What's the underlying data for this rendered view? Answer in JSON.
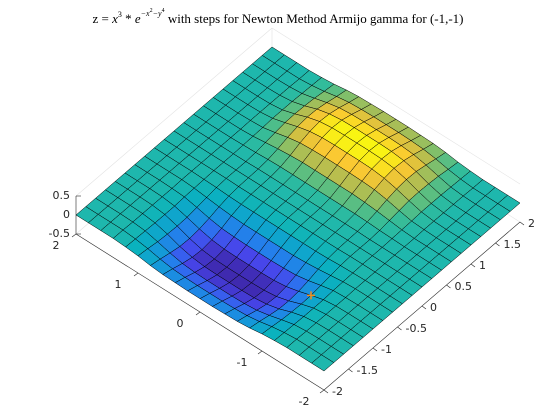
{
  "chart_data": {
    "type": "surface",
    "title": [
      "z = ",
      "x",
      "3",
      " * ",
      "e",
      "−x",
      "2",
      "−y",
      "4",
      " with steps for Newton Method Armijo gamma for (-1,-1)"
    ],
    "x": [
      -2,
      -1.8,
      -1.6,
      -1.4,
      -1.2,
      -1,
      -0.8,
      -0.6,
      -0.4,
      -0.2,
      0,
      0.2,
      0.4,
      0.6,
      0.8,
      1,
      1.2,
      1.4,
      1.6,
      1.8,
      2
    ],
    "y": [
      -2,
      -1.8,
      -1.6,
      -1.4,
      -1.2,
      -1,
      -0.8,
      -0.6,
      -0.4,
      -0.2,
      0,
      0.2,
      0.4,
      0.6,
      0.8,
      1,
      1.2,
      1.4,
      1.6,
      1.8,
      2
    ],
    "z": [
      [
        0,
        0,
        0,
        0,
        0,
        0,
        0,
        0,
        0,
        0,
        0,
        0,
        0,
        0,
        0,
        0,
        0,
        0,
        0,
        0,
        0
      ],
      [
        0,
        0,
        0,
        0,
        0,
        0,
        0,
        0,
        0,
        0,
        0,
        0,
        0,
        0,
        0,
        0,
        0,
        0,
        0,
        0,
        0
      ],
      [
        0,
        0,
        0,
        0,
        0,
        0,
        0,
        0,
        0,
        0,
        0,
        0,
        0,
        0,
        0,
        0,
        0,
        0,
        0,
        0,
        0
      ],
      [
        0,
        0,
        -0.01,
        -0.01,
        -0.01,
        -0.01,
        -0.01,
        0,
        0,
        0,
        0,
        0,
        0,
        0,
        0.01,
        0.01,
        0.01,
        0.01,
        0.01,
        0,
        0
      ],
      [
        -0.02,
        -0.03,
        -0.04,
        -0.05,
        -0.05,
        -0.05,
        -0.03,
        -0.02,
        -0.01,
        0,
        0,
        0,
        0.01,
        0.02,
        0.03,
        0.05,
        0.05,
        0.05,
        0.04,
        0.03,
        0.02
      ],
      [
        -0.05,
        -0.08,
        -0.12,
        -0.14,
        -0.15,
        -0.14,
        -0.1,
        -0.06,
        -0.02,
        0,
        0,
        0,
        0.02,
        0.06,
        0.1,
        0.14,
        0.15,
        0.14,
        0.12,
        0.08,
        0.05
      ],
      [
        -0.1,
        -0.15,
        -0.21,
        -0.26,
        -0.27,
        -0.24,
        -0.18,
        -0.1,
        -0.04,
        -0.01,
        0,
        0.01,
        0.04,
        0.1,
        0.18,
        0.24,
        0.27,
        0.26,
        0.21,
        0.15,
        0.1
      ],
      [
        -0.13,
        -0.2,
        -0.28,
        -0.34,
        -0.36,
        -0.32,
        -0.24,
        -0.13,
        -0.05,
        -0.01,
        0,
        0.01,
        0.05,
        0.13,
        0.24,
        0.32,
        0.36,
        0.34,
        0.28,
        0.2,
        0.13
      ],
      [
        -0.14,
        -0.22,
        -0.31,
        -0.38,
        -0.4,
        -0.36,
        -0.26,
        -0.15,
        -0.05,
        -0.01,
        0,
        0.01,
        0.05,
        0.15,
        0.26,
        0.36,
        0.4,
        0.38,
        0.31,
        0.22,
        0.14
      ],
      [
        -0.15,
        -0.23,
        -0.32,
        -0.39,
        -0.41,
        -0.37,
        -0.27,
        -0.15,
        -0.05,
        -0.01,
        0,
        0.01,
        0.05,
        0.15,
        0.27,
        0.37,
        0.41,
        0.39,
        0.32,
        0.23,
        0.15
      ],
      [
        -0.15,
        -0.23,
        -0.32,
        -0.39,
        -0.41,
        -0.37,
        -0.27,
        -0.15,
        -0.05,
        -0.01,
        0,
        0.01,
        0.05,
        0.15,
        0.27,
        0.37,
        0.41,
        0.39,
        0.32,
        0.23,
        0.15
      ],
      [
        -0.15,
        -0.23,
        -0.32,
        -0.39,
        -0.41,
        -0.37,
        -0.27,
        -0.15,
        -0.05,
        -0.01,
        0,
        0.01,
        0.05,
        0.15,
        0.27,
        0.37,
        0.41,
        0.39,
        0.32,
        0.23,
        0.15
      ],
      [
        -0.14,
        -0.22,
        -0.31,
        -0.38,
        -0.4,
        -0.36,
        -0.26,
        -0.15,
        -0.05,
        -0.01,
        0,
        0.01,
        0.05,
        0.15,
        0.26,
        0.36,
        0.4,
        0.38,
        0.31,
        0.22,
        0.14
      ],
      [
        -0.13,
        -0.2,
        -0.28,
        -0.34,
        -0.36,
        -0.32,
        -0.24,
        -0.13,
        -0.05,
        -0.01,
        0,
        0.01,
        0.05,
        0.13,
        0.24,
        0.32,
        0.36,
        0.34,
        0.28,
        0.2,
        0.13
      ],
      [
        -0.1,
        -0.15,
        -0.21,
        -0.26,
        -0.27,
        -0.24,
        -0.18,
        -0.1,
        -0.04,
        -0.01,
        0,
        0.01,
        0.04,
        0.1,
        0.18,
        0.24,
        0.27,
        0.26,
        0.21,
        0.15,
        0.1
      ],
      [
        -0.05,
        -0.08,
        -0.12,
        -0.14,
        -0.15,
        -0.14,
        -0.1,
        -0.06,
        -0.02,
        0,
        0,
        0,
        0.02,
        0.06,
        0.1,
        0.14,
        0.15,
        0.14,
        0.12,
        0.08,
        0.05
      ],
      [
        -0.02,
        -0.03,
        -0.04,
        -0.05,
        -0.05,
        -0.05,
        -0.03,
        -0.02,
        -0.01,
        0,
        0,
        0,
        0.01,
        0.02,
        0.03,
        0.05,
        0.05,
        0.05,
        0.04,
        0.03,
        0.02
      ],
      [
        0,
        0,
        -0.01,
        -0.01,
        -0.01,
        -0.01,
        -0.01,
        0,
        0,
        0,
        0,
        0,
        0,
        0,
        0.01,
        0.01,
        0.01,
        0.01,
        0.01,
        0,
        0
      ],
      [
        0,
        0,
        0,
        0,
        0,
        0,
        0,
        0,
        0,
        0,
        0,
        0,
        0,
        0,
        0,
        0,
        0,
        0,
        0,
        0,
        0
      ],
      [
        0,
        0,
        0,
        0,
        0,
        0,
        0,
        0,
        0,
        0,
        0,
        0,
        0,
        0,
        0,
        0,
        0,
        0,
        0,
        0,
        0
      ],
      [
        0,
        0,
        0,
        0,
        0,
        0,
        0,
        0,
        0,
        0,
        0,
        0,
        0,
        0,
        0,
        0,
        0,
        0,
        0,
        0,
        0
      ]
    ],
    "steps": {
      "x": [
        -1
      ],
      "y": [
        -1
      ],
      "z": [
        -0.14
      ],
      "color": "#f28e1c"
    },
    "xlim": [
      -2,
      2
    ],
    "ylim": [
      -2,
      2
    ],
    "zlim": [
      -0.5,
      0.5
    ],
    "xticks": [
      -2,
      -1.5,
      -1,
      -0.5,
      0,
      0.5,
      1,
      1.5,
      2
    ],
    "yticks": [
      -2,
      -1,
      0,
      1,
      2
    ],
    "zticks": [
      -0.5,
      0,
      0.5
    ],
    "colormap": "parula"
  }
}
